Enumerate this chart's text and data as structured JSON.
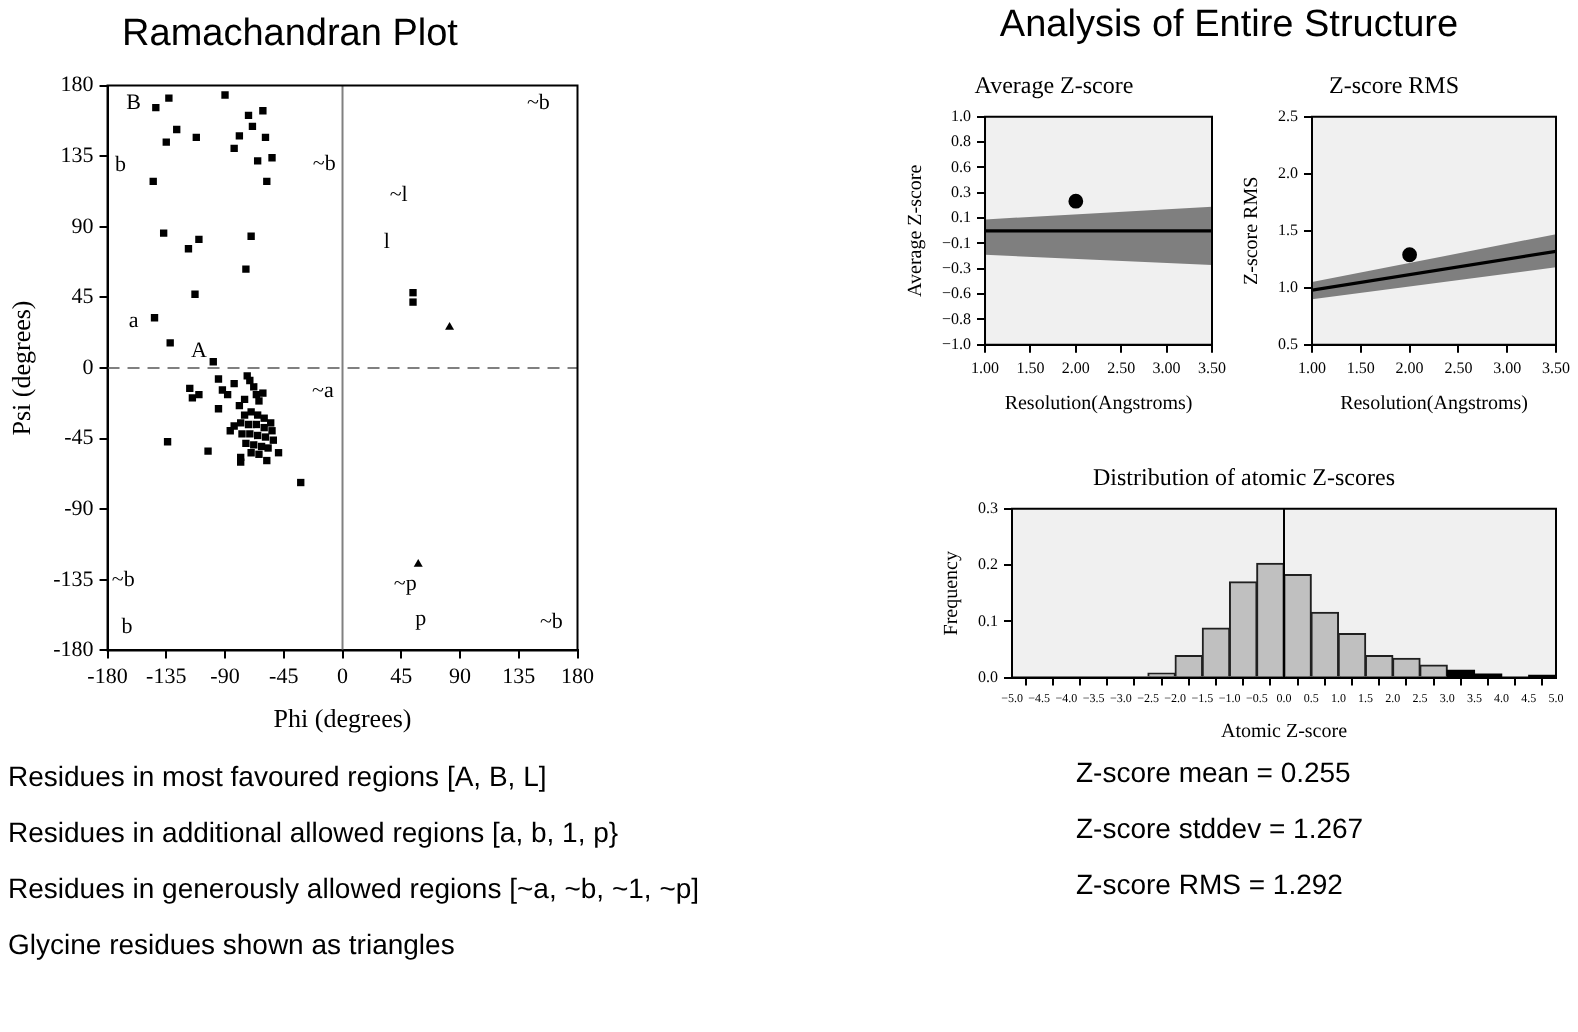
{
  "chart_data": [
    {
      "type": "scatter",
      "title": "Ramachandran Plot",
      "xlabel": "Phi (degrees)",
      "ylabel": "Psi (degrees)",
      "xlim": [
        -180,
        180
      ],
      "ylim": [
        -180,
        180
      ],
      "xticks": [
        -180,
        -135,
        -90,
        -45,
        0,
        45,
        90,
        135,
        180
      ],
      "yticks": [
        -180,
        -135,
        -90,
        -45,
        0,
        45,
        90,
        135,
        180
      ],
      "series": [
        {
          "color": "#000000",
          "marker": "square",
          "x": [
            -143,
            -133,
            -90,
            -72,
            -61,
            -69,
            -127,
            -135,
            -112,
            -79,
            -59,
            -83,
            -54,
            -65,
            -58,
            -145,
            -137,
            -110,
            -118,
            -70,
            -74,
            -113,
            -144,
            -132,
            -99,
            -117,
            -115,
            -110,
            -95,
            -83,
            -92,
            -88,
            -95,
            -73,
            -71,
            -68,
            -75,
            -66,
            -64,
            -61,
            -79,
            -83,
            -86,
            -49,
            -58,
            -78,
            -78,
            -103,
            -134,
            -32,
            -75,
            -70,
            -65,
            -60,
            -55,
            -78,
            -72,
            -66,
            -60,
            -54,
            -77,
            -71,
            -65,
            -59,
            -53,
            -74,
            -68,
            -62,
            -57,
            -70,
            -64,
            54,
            54
          ],
          "values": [
            166,
            172,
            174,
            161,
            164,
            154,
            152,
            144,
            147,
            148,
            147,
            140,
            134,
            132,
            119,
            119,
            86,
            82,
            76,
            84,
            63,
            47,
            32,
            16,
            4,
            -13,
            -19,
            -17,
            -7,
            -10,
            -14,
            -17,
            -26,
            -5,
            -8,
            -12,
            -20,
            -17,
            -21,
            -16,
            -24,
            -37,
            -40,
            -54,
            -59,
            -57,
            -60,
            -53,
            -47,
            -73,
            -30,
            -28,
            -30,
            -32,
            -35,
            -35,
            -36,
            -36,
            -38,
            -40,
            -42,
            -42,
            -43,
            -44,
            -46,
            -48,
            -49,
            -50,
            -51,
            -54,
            -55,
            48,
            42
          ]
        },
        {
          "color": "#000000",
          "marker": "triangle",
          "x": [
            82,
            58
          ],
          "values": [
            26,
            -125
          ]
        }
      ],
      "ref_lines": [
        {
          "axis": "x",
          "value": 0,
          "color": "#808080",
          "line_style": "solid"
        },
        {
          "axis": "y",
          "value": 0,
          "color": "#808080",
          "line_style": "dashed"
        }
      ],
      "annotations": [
        "A",
        "B",
        "b",
        "a",
        "l",
        "~l",
        "~b",
        "~a",
        "~b",
        "~b",
        "b",
        "~p",
        "p",
        "~b",
        "Residues in most favoured regions [A, B, L]",
        "Residues in additional allowed regions [a, b, 1, p}",
        "Residues in generously allowed regions [~a, ~b, ~1, ~p]",
        "Glycine residues shown as triangles"
      ]
    },
    {
      "type": "line",
      "title": "Average Z-score",
      "xlabel": "Resolution(Angstroms)",
      "ylabel": "Average Z-score",
      "xlim": [
        1,
        3.5
      ],
      "ylim": [
        -1,
        1
      ],
      "xticks": [
        {
          "value": 1,
          "label": "1.00"
        },
        {
          "value": 1.5,
          "label": "1.50"
        },
        {
          "value": 2,
          "label": "2.00"
        },
        {
          "value": 2.5,
          "label": "2.50"
        },
        {
          "value": 3,
          "label": "3.00"
        },
        {
          "value": 3.5,
          "label": "3.50"
        }
      ],
      "yticks": [
        {
          "value": 1,
          "label": "1.0"
        },
        {
          "value": 0.778,
          "label": "0.8"
        },
        {
          "value": 0.556,
          "label": "0.6"
        },
        {
          "value": 0.333,
          "label": "0.3"
        },
        {
          "value": 0.111,
          "label": "0.1"
        },
        {
          "value": -0.111,
          "label": "−0.1"
        },
        {
          "value": -0.333,
          "label": "−0.3"
        },
        {
          "value": -0.556,
          "label": "−0.6"
        },
        {
          "value": -0.778,
          "label": "−0.8"
        },
        {
          "value": -1,
          "label": "−1.0"
        }
      ],
      "series": [
        {
          "type": "line",
          "color": "#000000",
          "x": [
            1,
            3.5
          ],
          "values": [
            0,
            0
          ],
          "lower": [
            -0.21,
            -0.3
          ],
          "upper": [
            0.1,
            0.21
          ]
        },
        {
          "type": "scatter",
          "color": "#000000",
          "marker": "circle",
          "x": [
            2
          ],
          "values": [
            0.26
          ]
        }
      ]
    },
    {
      "type": "line",
      "title": "Z-score RMS",
      "xlabel": "Resolution(Angstroms)",
      "ylabel": "Z-score RMS",
      "xlim": [
        1,
        3.5
      ],
      "ylim": [
        0.5,
        2.5
      ],
      "xticks": [
        {
          "value": 1,
          "label": "1.00"
        },
        {
          "value": 1.5,
          "label": "1.50"
        },
        {
          "value": 2,
          "label": "2.00"
        },
        {
          "value": 2.5,
          "label": "2.50"
        },
        {
          "value": 3,
          "label": "3.00"
        },
        {
          "value": 3.5,
          "label": "3.50"
        }
      ],
      "yticks": [
        0.5,
        {
          "value": 1,
          "label": "1.0"
        },
        1.5,
        {
          "value": 2,
          "label": "2.0"
        },
        2.5
      ],
      "series": [
        {
          "type": "line",
          "color": "#000000",
          "x": [
            1,
            3.5
          ],
          "values": [
            0.98,
            1.32
          ],
          "lower": [
            0.9,
            1.18
          ],
          "upper": [
            1.05,
            1.47
          ]
        },
        {
          "type": "scatter",
          "color": "#000000",
          "marker": "circle",
          "x": [
            2
          ],
          "values": [
            1.29
          ]
        }
      ]
    },
    {
      "type": "histogram",
      "title": "Distribution of atomic Z-scores",
      "xlabel": "Atomic Z-score",
      "ylabel": "Frequency",
      "xlim": [
        -5,
        5
      ],
      "ylim": [
        0,
        0.3
      ],
      "xticks": [
        {
          "value": -5,
          "label": "−5.0"
        },
        {
          "value": -4.5,
          "label": "−4.5"
        },
        {
          "value": -4,
          "label": "−4.0"
        },
        {
          "value": -3.5,
          "label": "−3.5"
        },
        {
          "value": -3,
          "label": "−3.0"
        },
        {
          "value": -2.5,
          "label": "−2.5"
        },
        {
          "value": -2,
          "label": "−2.0"
        },
        {
          "value": -1.5,
          "label": "−1.5"
        },
        {
          "value": -1,
          "label": "−1.0"
        },
        {
          "value": -0.5,
          "label": "−0.5"
        },
        {
          "value": 0,
          "label": "0.0"
        },
        0.5,
        {
          "value": 1,
          "label": "1.0"
        },
        1.5,
        {
          "value": 2,
          "label": "2.0"
        },
        2.5,
        {
          "value": 3,
          "label": "3.0"
        },
        3.5,
        {
          "value": 4,
          "label": "4.0"
        },
        4.5,
        {
          "value": 5,
          "label": "5.0"
        }
      ],
      "yticks": [
        {
          "value": 0,
          "label": "0.0"
        },
        0.1,
        0.2,
        0.3
      ],
      "bins": [
        -5,
        -4.5,
        -4,
        -3.5,
        -3,
        -2.5,
        -2,
        -1.5,
        -1,
        -0.5,
        0,
        0.5,
        1,
        1.5,
        2,
        2.5,
        3,
        3.5,
        4,
        4.5,
        5
      ],
      "values": [
        0,
        0,
        0,
        0,
        0,
        0.008,
        0.039,
        0.088,
        0.17,
        0.203,
        0.183,
        0.116,
        0.078,
        0.039,
        0.034,
        0.022,
        0.013,
        0.006,
        0,
        0.004
      ],
      "colors": [
        "#c0c0c0",
        "#c0c0c0",
        "#c0c0c0",
        "#c0c0c0",
        "#c0c0c0",
        "#c0c0c0",
        "#c0c0c0",
        "#c0c0c0",
        "#c0c0c0",
        "#c0c0c0",
        "#c0c0c0",
        "#c0c0c0",
        "#c0c0c0",
        "#c0c0c0",
        "#c0c0c0",
        "#c0c0c0",
        "#000000",
        "#000000",
        "#000000",
        "#000000"
      ],
      "ref_lines": [
        {
          "axis": "x",
          "value": 0,
          "color": "#000000",
          "line_style": "solid"
        }
      ]
    },
    {
      "type": "other",
      "title": "Analysis of Entire Structure",
      "annotations": [
        "Z-score mean = 0.255",
        "Z-score stddev = 1.267",
        "Z-score RMS = 1.292"
      ]
    }
  ]
}
